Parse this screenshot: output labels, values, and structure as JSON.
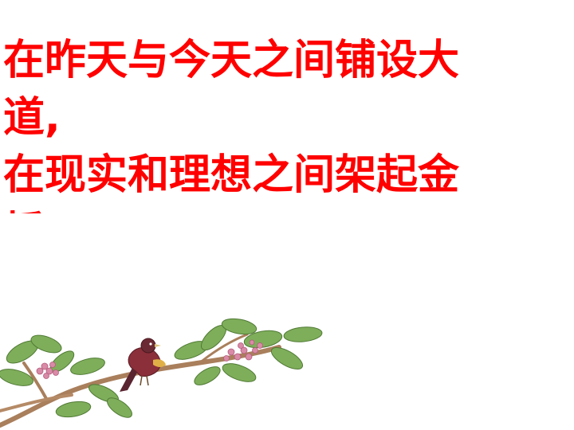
{
  "slide": {
    "text_color": "#ff0000",
    "lines": [
      "在昨天与今天之间铺设大",
      "道,",
      "在现实和理想之间架起金",
      "桥"
    ]
  },
  "illustration": {
    "subject": "bird-on-flowering-branch",
    "leaf_color": "#7fae5a",
    "blossom_color": "#d98aa6",
    "bird_color": "#8b2f3a"
  }
}
